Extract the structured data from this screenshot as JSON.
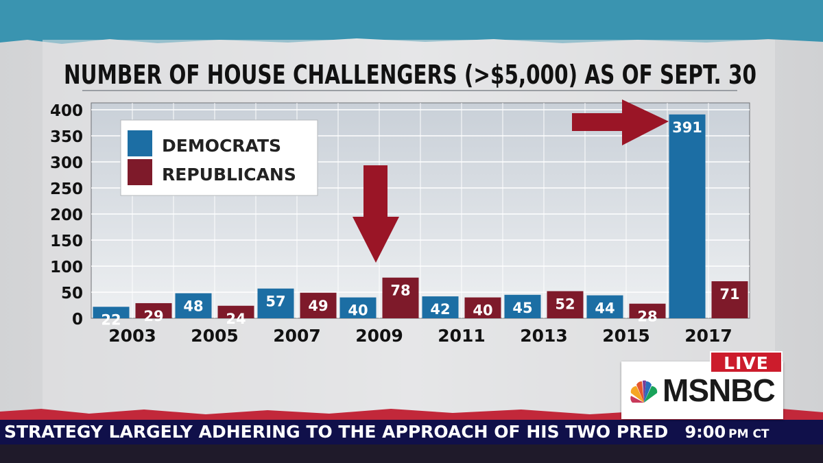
{
  "chart_data": {
    "type": "bar",
    "title": "NUMBER OF HOUSE CHALLENGERS (>$5,000) AS OF SEPT. 30",
    "categories": [
      "2003",
      "2005",
      "2007",
      "2009",
      "2011",
      "2013",
      "2015",
      "2017"
    ],
    "series": [
      {
        "name": "DEMOCRATS",
        "color": "#1c6ea4",
        "values": [
          22,
          48,
          57,
          40,
          42,
          45,
          44,
          391
        ]
      },
      {
        "name": "REPUBLICANS",
        "color": "#7e1a2a",
        "values": [
          29,
          24,
          49,
          78,
          40,
          52,
          28,
          71
        ]
      }
    ],
    "ylim": [
      0,
      400
    ],
    "yticks": [
      0,
      50,
      100,
      150,
      200,
      250,
      300,
      350,
      400
    ],
    "grid": true,
    "legend_position": "top-left",
    "annotations": [
      "arrow pointing down at 2009 Republicans bar",
      "arrow pointing right at 2017 Democrats bar"
    ]
  },
  "overlay": {
    "live_label": "LIVE",
    "network": "MSNBC",
    "ticker_text": "STRATEGY LARGELY ADHERING TO THE APPROACH OF HIS TWO PREDECESSORS",
    "time": "9:00",
    "timezone": "PM CT"
  },
  "colors": {
    "democrats": "#1c6ea4",
    "republicans": "#7e1a2a",
    "arrow": "#9a1526",
    "ticker_bg": "#10104a",
    "live_bg": "#cc1c2c"
  }
}
